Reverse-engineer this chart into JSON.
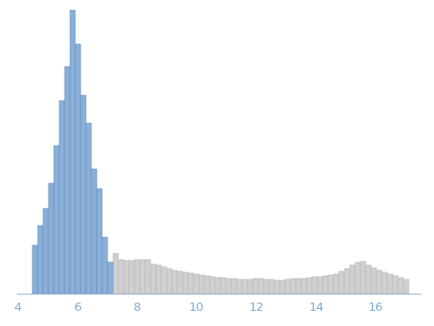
{
  "title": "",
  "xlabel": "",
  "ylabel": "",
  "xlim": [
    4,
    17.5
  ],
  "ylim": [
    0,
    1.0
  ],
  "xticks": [
    4,
    6,
    8,
    10,
    12,
    14,
    16
  ],
  "tick_color": "#7ba7d4",
  "spine_color": "#a0b8d8",
  "bar_width": 0.18,
  "blue_color": "#8ab0d8",
  "blue_edge": "#5a80b8",
  "gray_color": "#d0d0d0",
  "gray_edge": "#b0b0b0",
  "blue_bars": {
    "centers": [
      4.6,
      4.78,
      4.96,
      5.14,
      5.32,
      5.5,
      5.68,
      5.86,
      6.04,
      6.22,
      6.4,
      6.58,
      6.76,
      6.94,
      7.12
    ],
    "heights": [
      0.17,
      0.24,
      0.3,
      0.39,
      0.52,
      0.68,
      0.8,
      1.0,
      0.88,
      0.7,
      0.6,
      0.44,
      0.37,
      0.2,
      0.11
    ]
  },
  "gray_bars": {
    "centers": [
      6.94,
      7.12,
      7.3,
      7.48,
      7.66,
      7.84,
      8.02,
      8.2,
      8.38,
      8.56,
      8.74,
      8.92,
      9.1,
      9.28,
      9.46,
      9.64,
      9.82,
      10.0,
      10.18,
      10.36,
      10.54,
      10.72,
      10.9,
      11.08,
      11.26,
      11.44,
      11.62,
      11.8,
      11.98,
      12.16,
      12.34,
      12.52,
      12.7,
      12.88,
      13.06,
      13.24,
      13.42,
      13.6,
      13.78,
      13.96,
      14.14,
      14.32,
      14.5,
      14.68,
      14.86,
      15.04,
      15.22,
      15.4,
      15.58,
      15.76,
      15.94,
      16.12,
      16.3,
      16.48,
      16.66,
      16.84,
      17.02
    ],
    "heights": [
      0.095,
      0.11,
      0.14,
      0.12,
      0.115,
      0.115,
      0.118,
      0.12,
      0.12,
      0.105,
      0.1,
      0.095,
      0.088,
      0.082,
      0.078,
      0.075,
      0.072,
      0.068,
      0.065,
      0.062,
      0.06,
      0.057,
      0.055,
      0.053,
      0.052,
      0.05,
      0.05,
      0.05,
      0.052,
      0.052,
      0.05,
      0.05,
      0.048,
      0.048,
      0.05,
      0.052,
      0.052,
      0.054,
      0.056,
      0.058,
      0.06,
      0.062,
      0.066,
      0.07,
      0.078,
      0.088,
      0.1,
      0.11,
      0.112,
      0.1,
      0.092,
      0.082,
      0.075,
      0.068,
      0.062,
      0.056,
      0.05
    ]
  }
}
